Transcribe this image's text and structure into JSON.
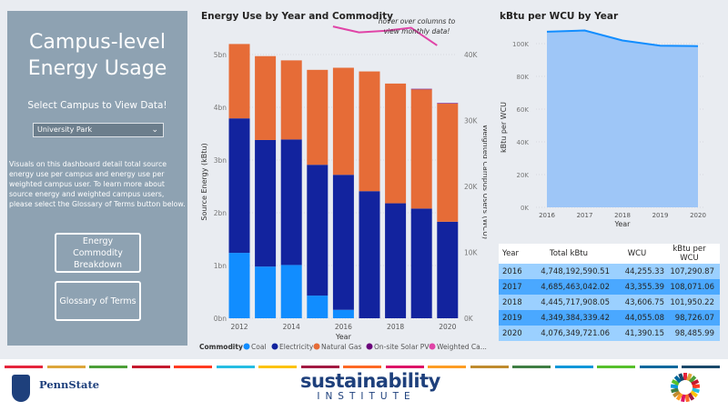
{
  "left_panel": {
    "title": "Campus-level Energy Usage",
    "select_label": "Select Campus to View Data!",
    "campus_selected": "University Park",
    "description": "Visuals on this dashboard detail total source energy use per campus and energy use per weighted campus user. To learn more about source energy and weighted campus users, please select the Glossary of Terms button below.",
    "buttons": [
      "Energy Commodity Breakdown",
      "Glossary of Terms"
    ]
  },
  "chart_data": [
    {
      "type": "bar",
      "stacked": true,
      "title": "Energy Use by Year and Commodity",
      "annotation": "hover over columns to view monthly data!",
      "xlabel": "Year",
      "ylabel": "Source Energy (kBtu)",
      "y2label": "Weighted Campus Users (WCU)",
      "categories": [
        2012,
        2013,
        2014,
        2015,
        2016,
        2017,
        2018,
        2019,
        2020
      ],
      "x_ticks": [
        "2012",
        "2014",
        "2016",
        "2018",
        "2020"
      ],
      "y_ticks": [
        "0bn",
        "1bn",
        "2bn",
        "3bn",
        "4bn",
        "5bn"
      ],
      "y2_ticks": [
        "0K",
        "10K",
        "20K",
        "30K",
        "40K"
      ],
      "ylim": [
        0,
        5.4
      ],
      "y2lim": [
        0,
        46
      ],
      "legend_title": "Commodity",
      "legend": [
        "Coal",
        "Electricity",
        "Natural Gas",
        "On-site Solar PV",
        "Weighted Ca..."
      ],
      "legend_position": "bottom",
      "series": [
        {
          "name": "Coal",
          "color": "#118dff",
          "values": [
            1.24,
            0.98,
            1.01,
            0.43,
            0.16,
            0,
            0,
            0,
            0
          ]
        },
        {
          "name": "Electricity",
          "color": "#12239e",
          "values": [
            2.55,
            2.4,
            2.38,
            2.48,
            2.56,
            2.41,
            2.18,
            2.08,
            1.83
          ]
        },
        {
          "name": "Natural Gas",
          "color": "#e66c37",
          "values": [
            1.41,
            1.59,
            1.5,
            1.8,
            2.03,
            2.27,
            2.27,
            2.26,
            2.24
          ]
        },
        {
          "name": "On-site Solar PV",
          "color": "#6b007b",
          "values": [
            0,
            0,
            0,
            0,
            0,
            0,
            0,
            0.01,
            0.01
          ]
        }
      ],
      "line_series": {
        "name": "Weighted Ca...",
        "color": "#e044a7",
        "x": [
          2016,
          2017,
          2018,
          2019,
          2020
        ],
        "values": [
          44.26,
          43.36,
          43.61,
          44.06,
          41.39
        ]
      }
    },
    {
      "type": "area",
      "title": "kBtu per WCU by Year",
      "xlabel": "Year",
      "ylabel": "kBtu per WCU",
      "categories": [
        "2016",
        "2017",
        "2018",
        "2019",
        "2020"
      ],
      "values": [
        107290.87,
        108071.06,
        101950.22,
        98726.07,
        98485.99
      ],
      "y_ticks": [
        "0K",
        "20K",
        "40K",
        "60K",
        "80K",
        "100K"
      ],
      "ylim": [
        0,
        110000
      ],
      "color": "#118dff"
    }
  ],
  "table": {
    "headers": [
      "Year",
      "Total kBtu",
      "WCU",
      "kBtu per WCU"
    ],
    "rows": [
      [
        "2016",
        "4,748,192,590.51",
        "44,255.33",
        "107,290.87"
      ],
      [
        "2017",
        "4,685,463,042.02",
        "43,355.39",
        "108,071.06"
      ],
      [
        "2018",
        "4,445,717,908.05",
        "43,606.75",
        "101,950.22"
      ],
      [
        "2019",
        "4,349,384,339.42",
        "44,055.08",
        "98,726.07"
      ],
      [
        "2020",
        "4,076,349,721.06",
        "41,390.15",
        "98,485.99"
      ]
    ],
    "row_colors": [
      "#9bd0ff",
      "#4aa8ff"
    ]
  },
  "footer": {
    "pennstate": "PennState",
    "si_main": "sustainability",
    "si_sub": "INSTITUTE",
    "sdg_colors": [
      "#e5243b",
      "#dda63a",
      "#4c9f38",
      "#c5192d",
      "#ff3a21",
      "#26bde2",
      "#fcc30b",
      "#a21942",
      "#fd6925",
      "#dd1367",
      "#fd9d24",
      "#bf8b2e",
      "#3f7e44",
      "#0a97d9",
      "#56c02b",
      "#00689d",
      "#19486a"
    ]
  }
}
